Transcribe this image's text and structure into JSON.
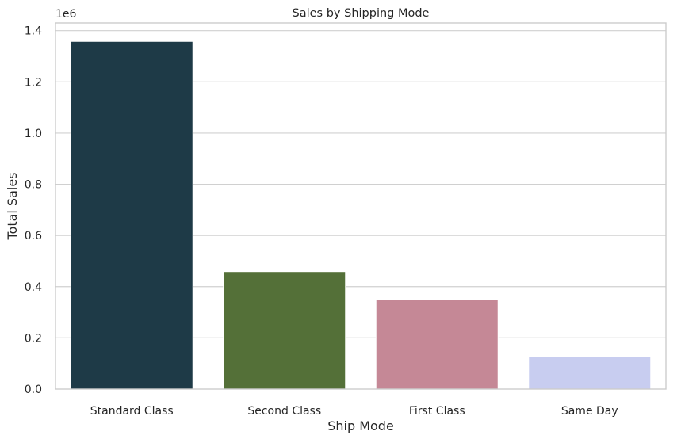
{
  "chart_data": {
    "type": "bar",
    "title": "Sales by Shipping Mode",
    "xlabel": "Ship Mode",
    "ylabel": "Total Sales",
    "offset_label": "1e6",
    "categories": [
      "Standard Class",
      "Second Class",
      "First Class",
      "Same Day"
    ],
    "values": [
      1358000,
      459000,
      351000,
      128000
    ],
    "colors": [
      "#1e3a47",
      "#547038",
      "#c58896",
      "#c8cdf0"
    ],
    "ylim": [
      0,
      1430000
    ],
    "yticks": [
      0,
      200000,
      400000,
      600000,
      800000,
      1000000,
      1200000,
      1400000
    ],
    "ytick_labels": [
      "0.0",
      "0.2",
      "0.4",
      "0.6",
      "0.8",
      "1.0",
      "1.2",
      "1.4"
    ],
    "grid": true,
    "grid_axis": "y",
    "legend": "none"
  }
}
